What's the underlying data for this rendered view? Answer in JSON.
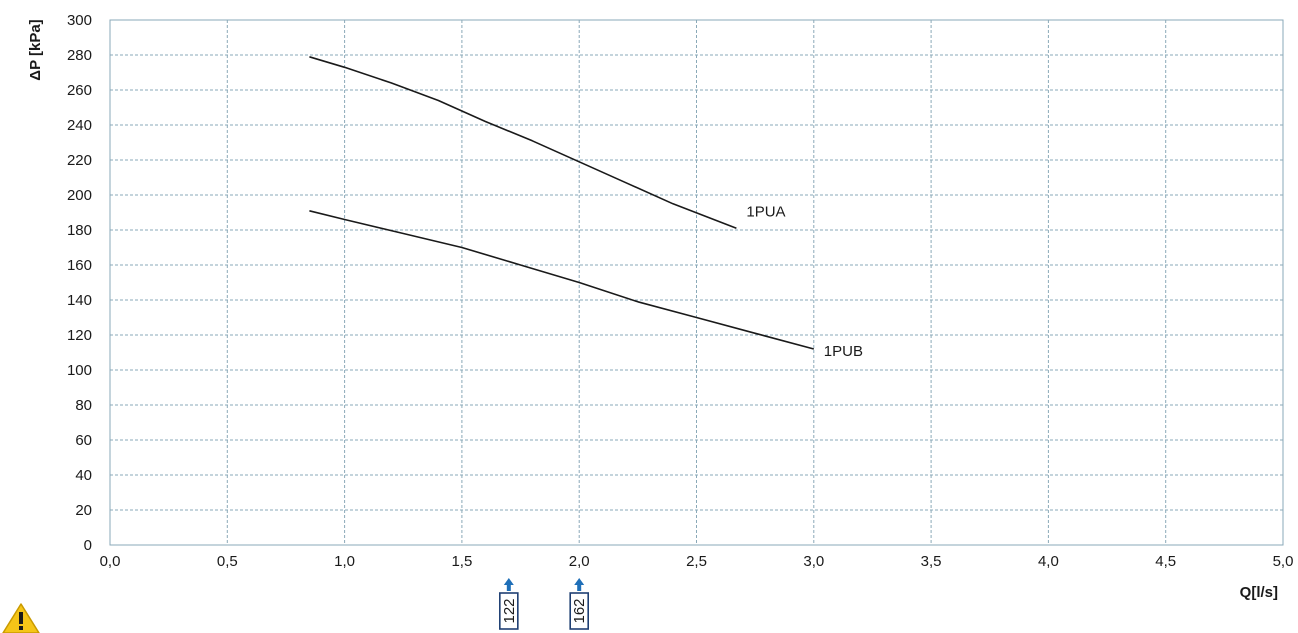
{
  "chart_data": {
    "type": "line",
    "xlabel": "Q[l/s]",
    "ylabel": "ΔP [kPa]",
    "xlim": [
      0,
      5
    ],
    "ylim": [
      0,
      300
    ],
    "x_ticks": [
      "0,0",
      "0,5",
      "1,0",
      "1,5",
      "2,0",
      "2,5",
      "3,0",
      "3,5",
      "4,0",
      "4,5",
      "5,0"
    ],
    "y_ticks": [
      "0",
      "20",
      "40",
      "60",
      "80",
      "100",
      "120",
      "140",
      "160",
      "180",
      "200",
      "220",
      "240",
      "260",
      "280",
      "300"
    ],
    "grid": true,
    "series": [
      {
        "name": "1PUA",
        "x": [
          0.85,
          1.0,
          1.2,
          1.4,
          1.6,
          1.8,
          2.0,
          2.2,
          2.4,
          2.67
        ],
        "y": [
          279,
          273,
          264,
          254,
          242,
          231,
          219,
          207,
          195,
          181
        ]
      },
      {
        "name": "1PUB",
        "x": [
          0.85,
          1.0,
          1.25,
          1.5,
          1.75,
          2.0,
          2.25,
          2.5,
          2.75,
          3.0
        ],
        "y": [
          191,
          186,
          178,
          170,
          160,
          150,
          139,
          130,
          121,
          112
        ]
      }
    ],
    "markers": [
      {
        "label": "122",
        "x": 1.7
      },
      {
        "label": "162",
        "x": 2.0
      }
    ],
    "colors": {
      "grid": "#8aa9b8",
      "line": "#1a1a1a",
      "marker_arrow": "#1f6fb8",
      "marker_box": "#1f3f73",
      "warning": "#f5c518"
    },
    "icons": {
      "warning": "warning-triangle-icon",
      "marker": "up-arrow-icon"
    }
  }
}
